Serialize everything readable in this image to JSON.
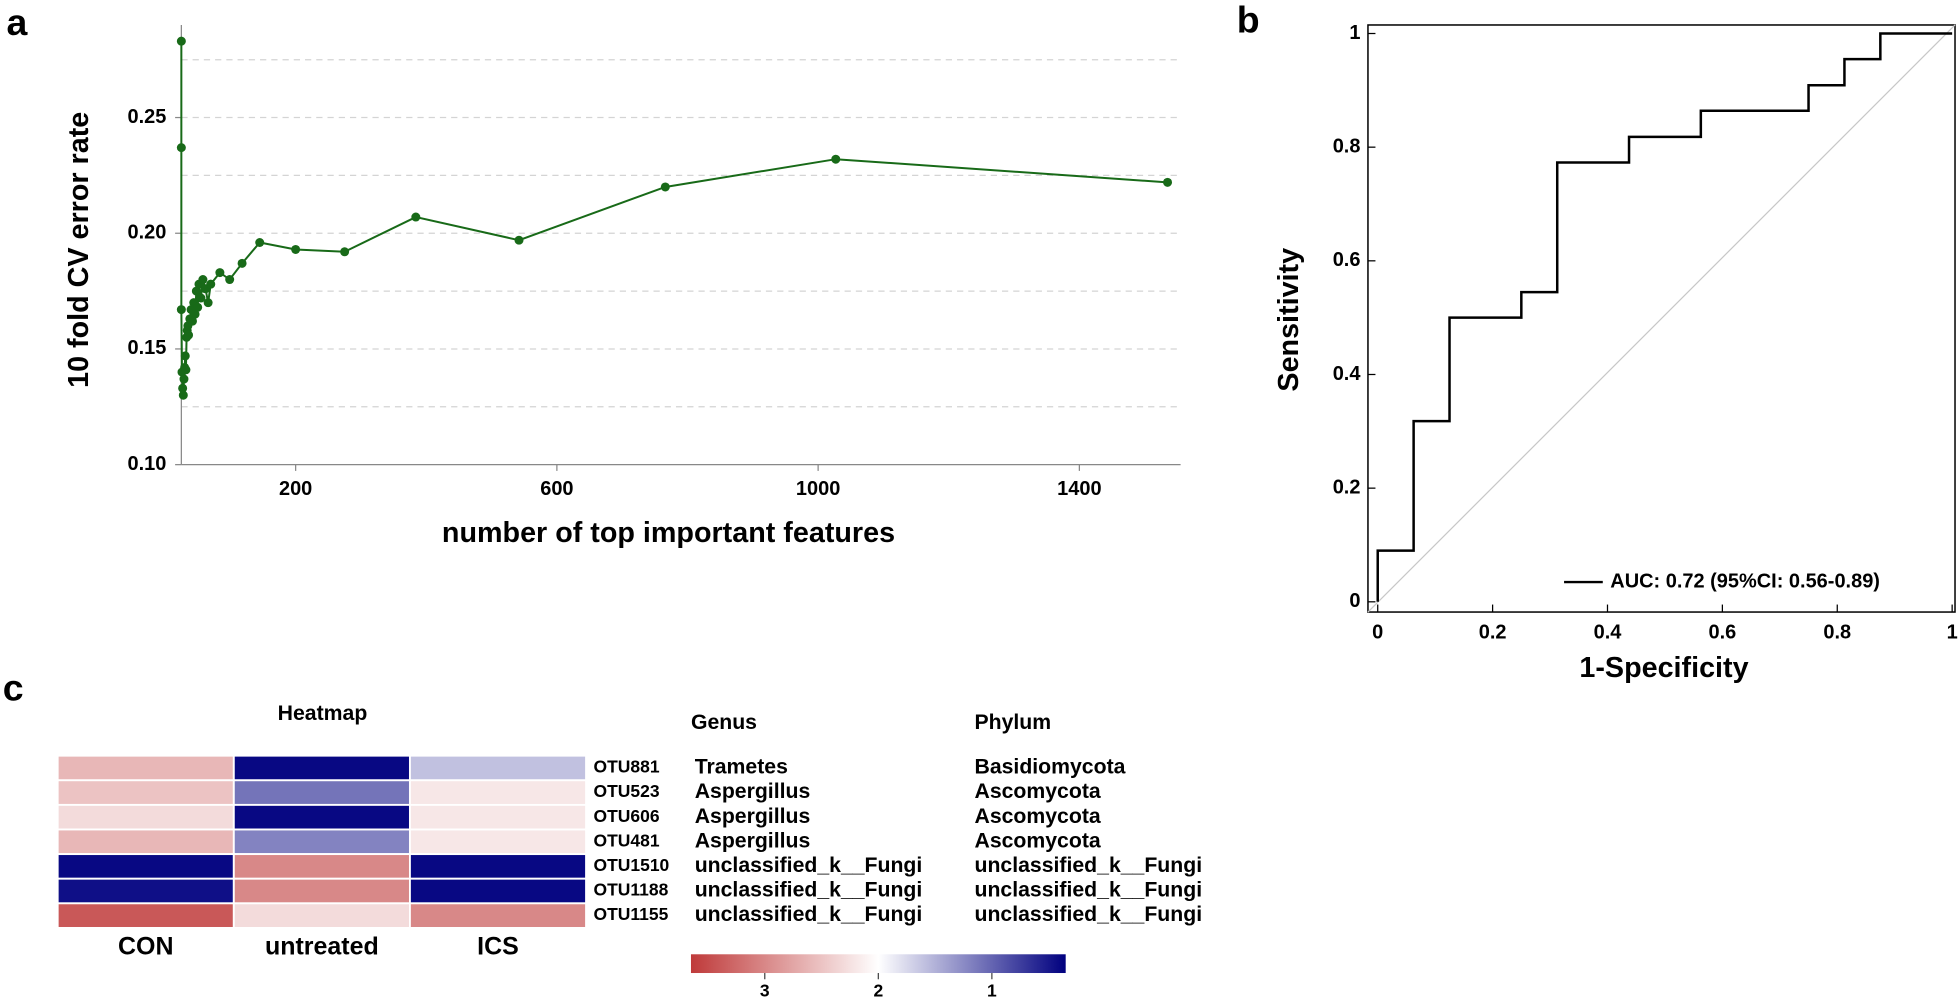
{
  "chart_data": [
    {
      "type": "line",
      "panel_label": "a",
      "xlabel": "number of top important features",
      "ylabel": "10 fold CV error rate",
      "x": [
        25,
        25,
        25,
        26,
        27,
        28,
        29,
        30,
        31,
        32,
        33,
        34,
        35,
        36,
        38,
        40,
        42,
        44,
        46,
        48,
        50,
        52,
        55,
        58,
        62,
        66,
        70,
        84,
        99,
        118,
        145,
        200,
        275,
        384,
        542,
        766,
        1027,
        1535
      ],
      "values": [
        0.283,
        0.237,
        0.167,
        0.14,
        0.133,
        0.13,
        0.137,
        0.142,
        0.147,
        0.141,
        0.155,
        0.158,
        0.16,
        0.156,
        0.163,
        0.167,
        0.162,
        0.17,
        0.165,
        0.175,
        0.168,
        0.178,
        0.172,
        0.18,
        0.176,
        0.17,
        0.178,
        0.183,
        0.18,
        0.187,
        0.196,
        0.193,
        0.192,
        0.207,
        0.197,
        0.22,
        0.232,
        0.222
      ],
      "color": "#186a18",
      "xlim": [
        25,
        1555
      ],
      "ylim": [
        0.1,
        0.29
      ],
      "xticks": [
        200,
        600,
        1000,
        1400
      ],
      "yticks": [
        {
          "value": 0.1,
          "label": "0.10"
        },
        0.15,
        {
          "value": 0.2,
          "label": "0.20"
        },
        0.25
      ],
      "grid": true,
      "grid_yticks": [
        0.125,
        0.15,
        0.175,
        0.2,
        0.225,
        0.25,
        0.275
      ]
    },
    {
      "type": "roc",
      "panel_label": "b",
      "xlabel": "1-Specificity",
      "ylabel": "Sensitivity",
      "x": [
        0,
        0,
        0.0625,
        0.0625,
        0.125,
        0.125,
        0.25,
        0.25,
        0.3125,
        0.3125,
        0.4375,
        0.4375,
        0.5625,
        0.5625,
        0.75,
        0.75,
        0.8125,
        0.8125,
        0.875,
        0.875,
        1
      ],
      "series": [
        {
          "name": "AUC: 0.72 (95%CI: 0.56-0.89)",
          "color": "#000000",
          "values": [
            0,
            0.09,
            0.09,
            0.318,
            0.318,
            0.5,
            0.5,
            0.545,
            0.545,
            0.773,
            0.773,
            0.818,
            0.818,
            0.864,
            0.864,
            0.909,
            0.909,
            0.955,
            0.955,
            1,
            1
          ]
        }
      ],
      "xlim": [
        -0.017,
        1.005
      ],
      "ylim": [
        -0.018,
        1.015
      ],
      "xticks": [
        0,
        0.2,
        0.4,
        0.6,
        0.8,
        1
      ],
      "yticks": [
        0,
        0.2,
        0.4,
        0.6,
        0.8,
        1
      ],
      "legend": "lower right"
    },
    {
      "type": "heatmap",
      "panel_label": "c",
      "title": "Heatmap",
      "columns": [
        "CON",
        "untreated",
        "ICS"
      ],
      "rows": [
        "OTU881",
        "OTU523",
        "OTU606",
        "OTU481",
        "OTU1510",
        "OTU1188",
        "OTU1155"
      ],
      "genus_header": "Genus",
      "phylum_header": "Phylum",
      "genus": [
        "Trametes",
        "Aspergillus",
        "Aspergillus",
        "Aspergillus",
        "unclassified_k__Fungi",
        "unclassified_k__Fungi",
        "unclassified_k__Fungi"
      ],
      "phylum": [
        "Basidiomycota",
        "Ascomycota",
        "Ascomycota",
        "Ascomycota",
        "unclassified_k__Fungi",
        "unclassified_k__Fungi",
        "unclassified_k__Fungi"
      ],
      "values": [
        [
          2.6,
          0.4,
          1.6
        ],
        [
          2.5,
          1.1,
          2.2
        ],
        [
          2.3,
          0.4,
          2.2
        ],
        [
          2.6,
          1.2,
          2.2
        ],
        [
          0.4,
          3.0,
          0.4
        ],
        [
          0.45,
          3.0,
          0.4
        ],
        [
          3.4,
          2.3,
          3.0
        ]
      ],
      "zlim": [
        3.65,
        0.35
      ],
      "colorscale": [
        "#bf3a3a",
        "#ffffff",
        "#00007f"
      ],
      "colorbar_ticks": [
        3,
        2,
        1
      ]
    }
  ]
}
